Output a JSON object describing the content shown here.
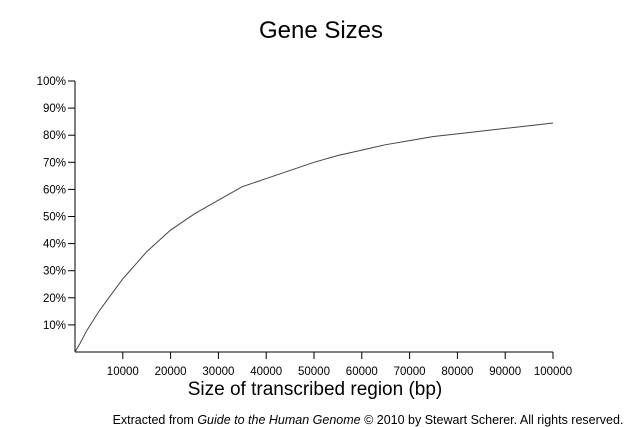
{
  "chart_data": {
    "type": "line",
    "title": "Gene Sizes",
    "xlabel": "Size of transcribed region (bp)",
    "ylabel": "",
    "xlim": [
      0,
      100000
    ],
    "ylim": [
      0,
      100
    ],
    "grid": false,
    "x_ticks": [
      10000,
      20000,
      30000,
      40000,
      50000,
      60000,
      70000,
      80000,
      90000,
      100000
    ],
    "x_tick_labels": [
      "10000",
      "20000",
      "30000",
      "40000",
      "50000",
      "60000",
      "70000",
      "80000",
      "90000",
      "100000"
    ],
    "y_ticks": [
      10,
      20,
      30,
      40,
      50,
      60,
      70,
      80,
      90,
      100
    ],
    "y_tick_labels": [
      "10%",
      "20%",
      "30%",
      "40%",
      "50%",
      "60%",
      "70%",
      "80%",
      "90%",
      "100%"
    ],
    "series": [
      {
        "color": "#444444",
        "x": [
          0,
          1000,
          2500,
          5000,
          7500,
          10000,
          12500,
          15000,
          17500,
          20000,
          25000,
          30000,
          35000,
          40000,
          45000,
          50000,
          55000,
          60000,
          65000,
          70000,
          75000,
          80000,
          85000,
          90000,
          95000,
          100000
        ],
        "y": [
          0,
          3,
          8,
          15,
          21,
          27,
          32,
          37,
          41,
          45,
          51,
          56,
          61,
          64,
          67,
          70,
          72.5,
          74.5,
          76.5,
          78,
          79.5,
          80.5,
          81.5,
          82.5,
          83.5,
          84.5
        ]
      }
    ]
  },
  "credit": {
    "prefix": "Extracted from ",
    "book_title": "Guide to the Human Genome",
    "suffix": " © 2010 by Stewart Scherer.  All rights reserved."
  }
}
